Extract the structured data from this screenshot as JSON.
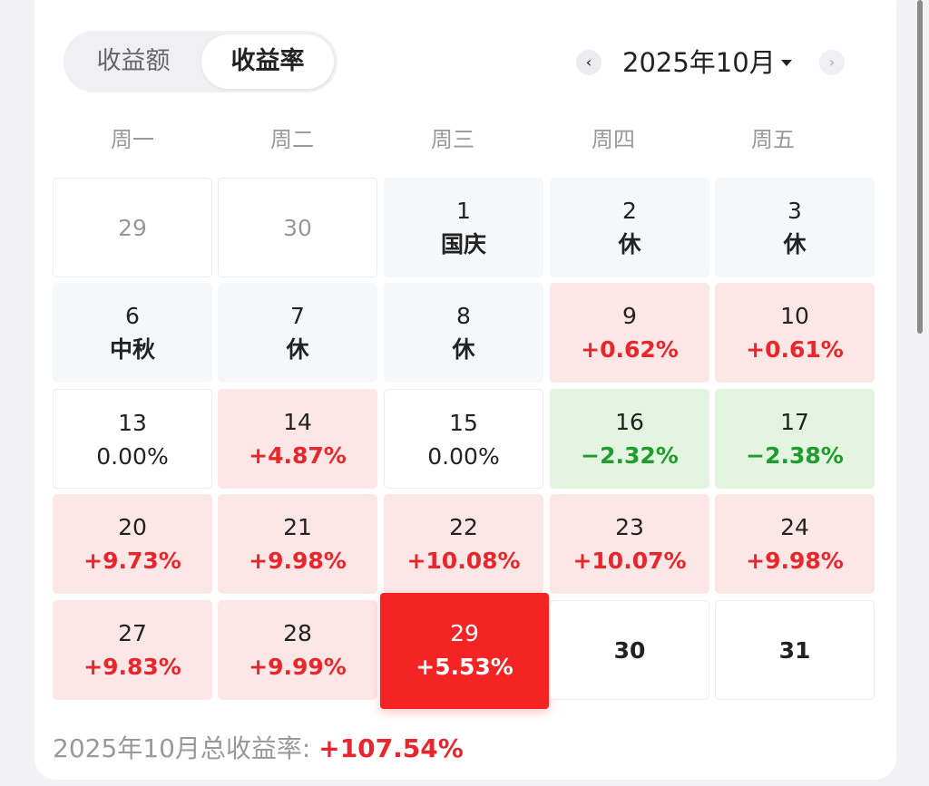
{
  "toggle": {
    "options": [
      {
        "label": "收益额",
        "active": false
      },
      {
        "label": "收益率",
        "active": true
      }
    ]
  },
  "nav": {
    "prev_icon": "chevron-left-icon",
    "next_icon": "chevron-right-icon",
    "prev_symbol": "‹",
    "next_symbol": "›",
    "month_label": "2025年10月"
  },
  "weekdays": [
    "周一",
    "周二",
    "周三",
    "周四",
    "周五"
  ],
  "calendar": {
    "weeks": [
      [
        {
          "day": "29",
          "value": "",
          "type": "outside"
        },
        {
          "day": "30",
          "value": "",
          "type": "outside"
        },
        {
          "day": "1",
          "value": "国庆",
          "type": "holiday"
        },
        {
          "day": "2",
          "value": "休",
          "type": "holiday"
        },
        {
          "day": "3",
          "value": "休",
          "type": "holiday"
        }
      ],
      [
        {
          "day": "6",
          "value": "中秋",
          "type": "holiday"
        },
        {
          "day": "7",
          "value": "休",
          "type": "holiday"
        },
        {
          "day": "8",
          "value": "休",
          "type": "holiday"
        },
        {
          "day": "9",
          "value": "+0.62%",
          "type": "up"
        },
        {
          "day": "10",
          "value": "+0.61%",
          "type": "up"
        }
      ],
      [
        {
          "day": "13",
          "value": "0.00%",
          "type": "flat"
        },
        {
          "day": "14",
          "value": "+4.87%",
          "type": "up"
        },
        {
          "day": "15",
          "value": "0.00%",
          "type": "flat"
        },
        {
          "day": "16",
          "value": "−2.32%",
          "type": "down"
        },
        {
          "day": "17",
          "value": "−2.38%",
          "type": "down"
        }
      ],
      [
        {
          "day": "20",
          "value": "+9.73%",
          "type": "up"
        },
        {
          "day": "21",
          "value": "+9.98%",
          "type": "up"
        },
        {
          "day": "22",
          "value": "+10.08%",
          "type": "up"
        },
        {
          "day": "23",
          "value": "+10.07%",
          "type": "up"
        },
        {
          "day": "24",
          "value": "+9.98%",
          "type": "up"
        }
      ],
      [
        {
          "day": "27",
          "value": "+9.83%",
          "type": "up"
        },
        {
          "day": "28",
          "value": "+9.99%",
          "type": "up"
        },
        {
          "day": "29",
          "value": "+5.53%",
          "type": "selected"
        },
        {
          "day": "30",
          "value": "",
          "type": "future"
        },
        {
          "day": "31",
          "value": "",
          "type": "future"
        }
      ]
    ]
  },
  "summary": {
    "label": "2025年10月总收益率: ",
    "total": "+107.54%"
  },
  "colors": {
    "up": "#e8262b",
    "down": "#1e9c2c",
    "selected": "#f42424",
    "up_bg": "#fde6e6",
    "down_bg": "#e3f4e1"
  }
}
